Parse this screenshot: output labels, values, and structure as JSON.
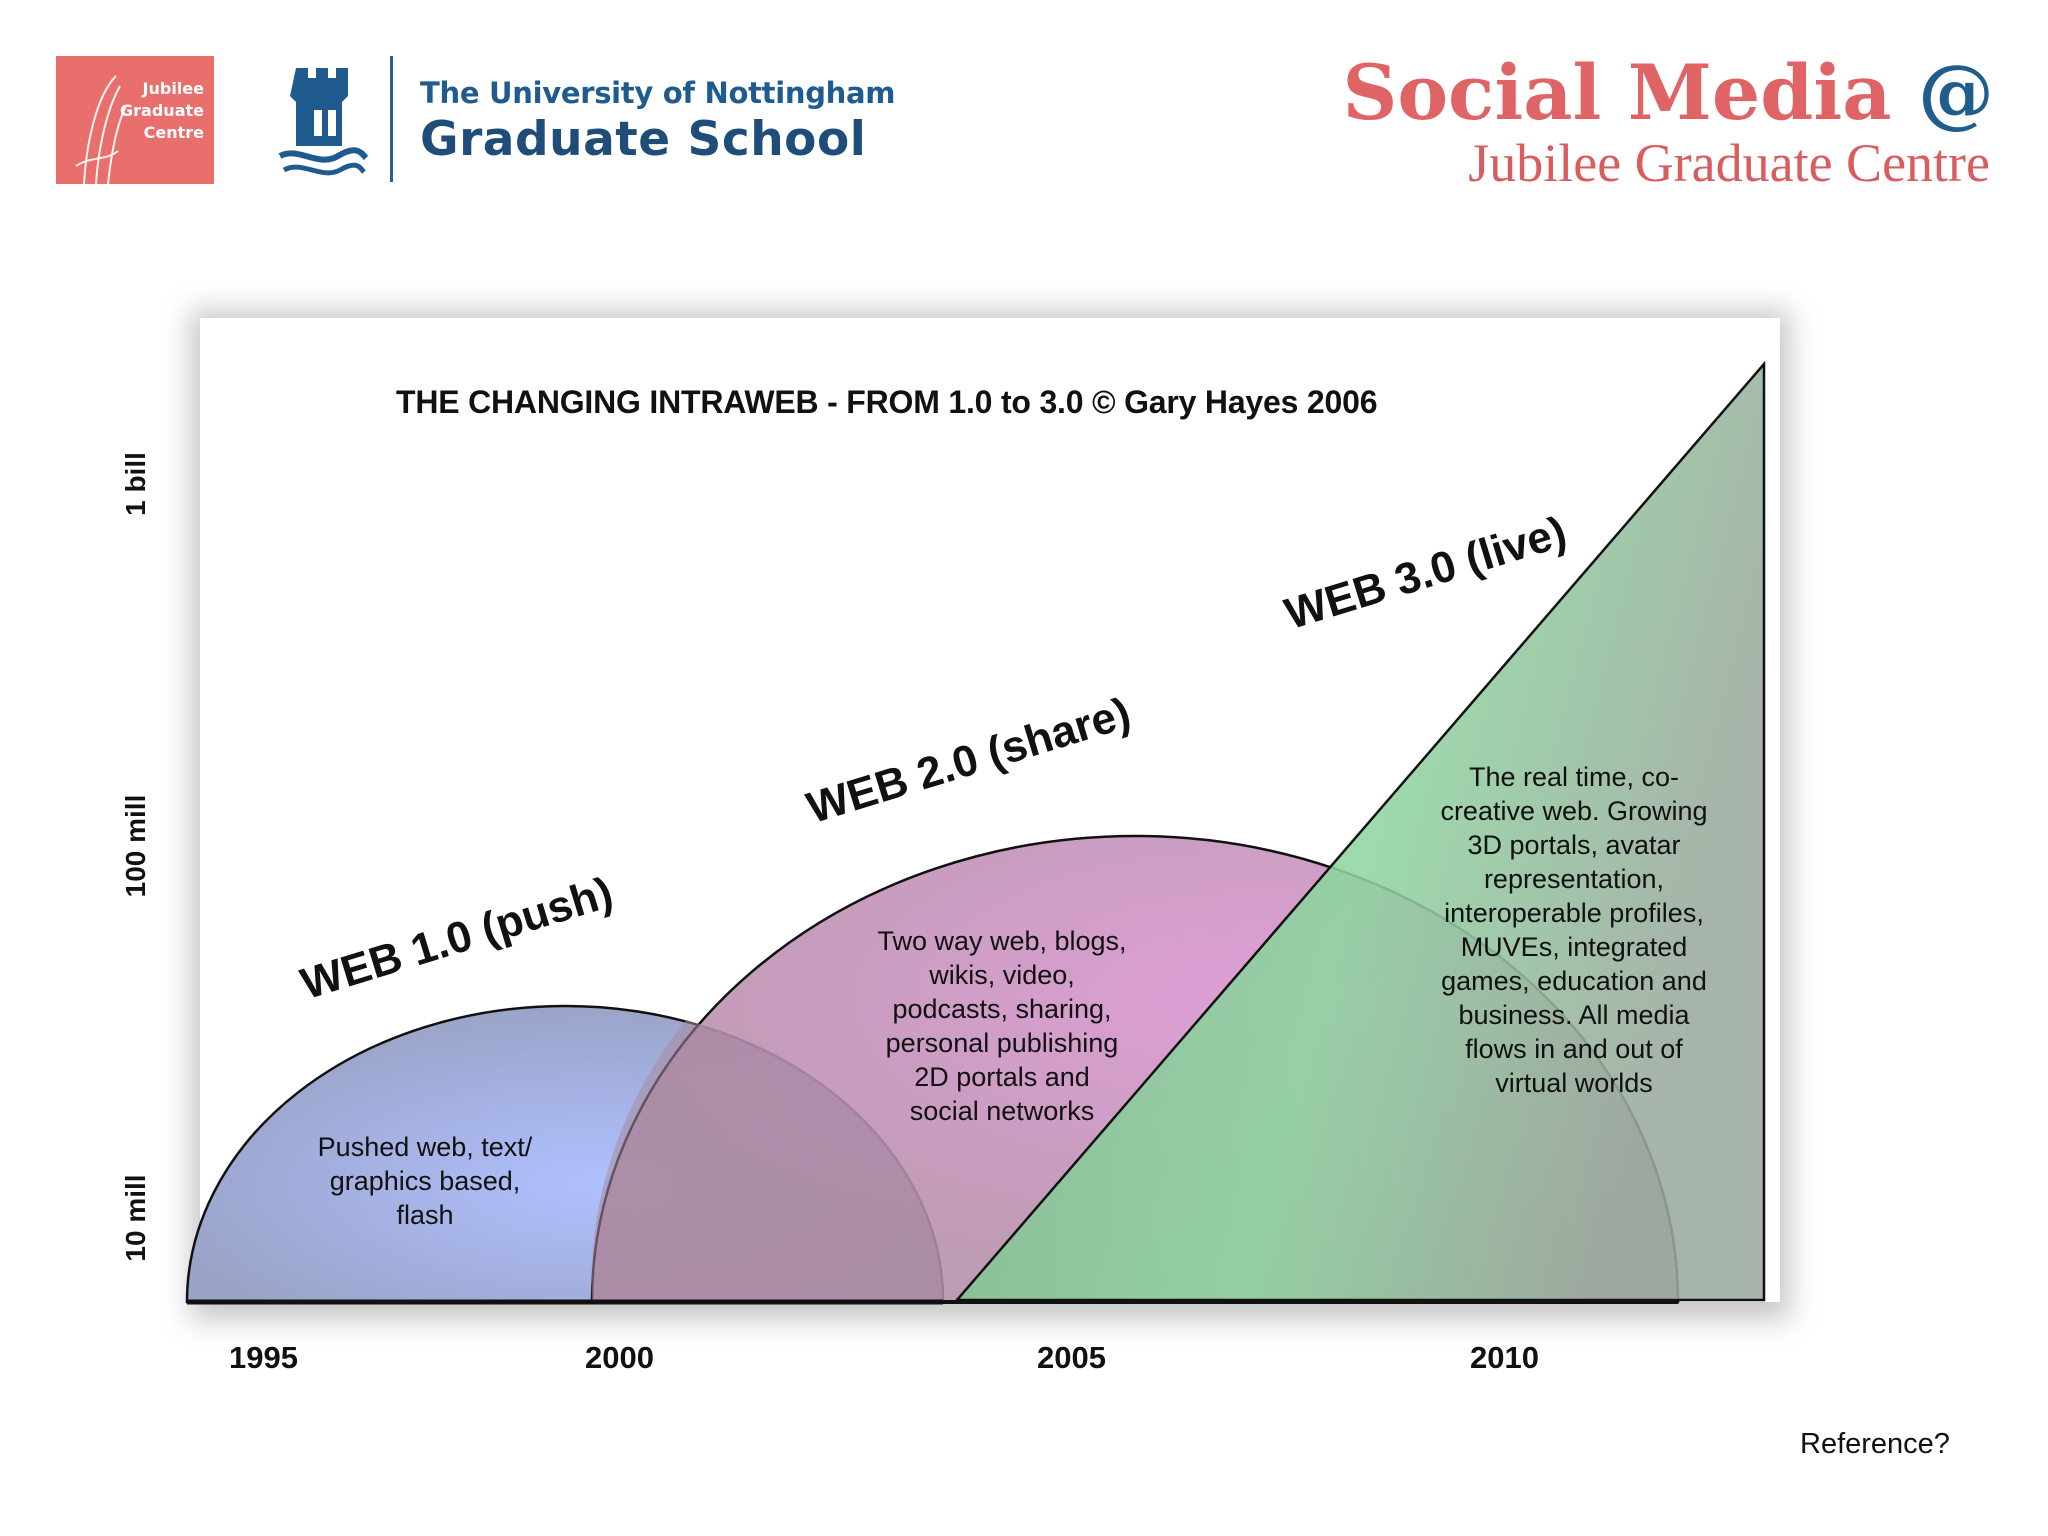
{
  "header": {
    "jgc_logo_lines": [
      "Jubilee",
      "Graduate",
      "Centre"
    ],
    "university_name": "The University of Nottingham",
    "school_name": "Graduate School",
    "title_main": "Social Media",
    "title_at": "@",
    "subtitle": "Jubilee Graduate Centre"
  },
  "diagram": {
    "title": "THE CHANGING INTRAWEB - FROM 1.0 to 3.0 © Gary Hayes 2006",
    "y_axis_labels": [
      "1 bill",
      "100 mill",
      "10 mill"
    ],
    "x_axis_labels": [
      "1995",
      "2000",
      "2005",
      "2010"
    ],
    "eras": [
      {
        "name": "WEB 1.0 (push)",
        "description_lines": [
          "Pushed web, text/",
          "graphics based,",
          "flash"
        ],
        "color": "#a9b7ee"
      },
      {
        "name": "WEB 2.0 (share)",
        "description_lines": [
          "Two way web, blogs,",
          "wikis, video,",
          "podcasts, sharing,",
          "personal publishing",
          "2D portals and",
          "social networks"
        ],
        "color": "#c98cbf"
      },
      {
        "name": "WEB 3.0 (live)",
        "description_lines": [
          "The real time, co-",
          "creative web. Growing",
          "3D portals, avatar",
          "representation,",
          "interoperable profiles,",
          "MUVEs, integrated",
          "games, education and",
          "business. All media",
          "flows in and out of",
          "virtual worlds"
        ],
        "color": "#86c998"
      }
    ]
  },
  "footer": {
    "reference": "Reference?"
  }
}
